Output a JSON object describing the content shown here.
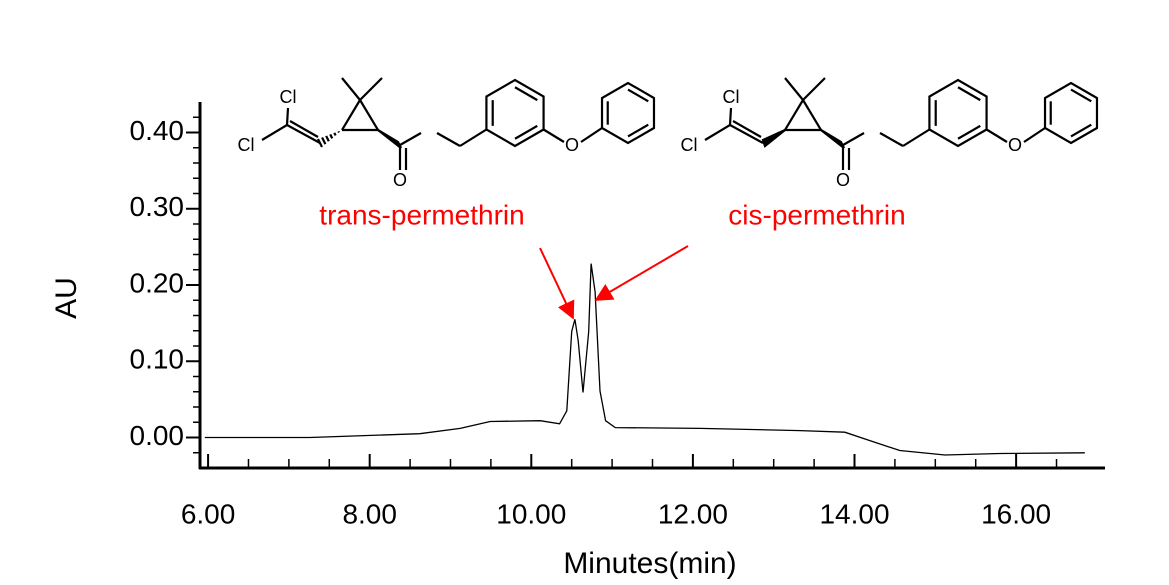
{
  "chart_data": {
    "type": "line",
    "x_label": "Minutes(min)",
    "y_label": "AU",
    "annotations": [
      "trans-permethrin",
      "cis-permethrin"
    ],
    "annotation_color": "#ff0000",
    "structure_labels": [
      [
        "Cl",
        "Cl",
        "O",
        "O"
      ],
      [
        "Cl",
        "Cl",
        "O",
        "O"
      ]
    ],
    "x": [
      5.96,
      7.26,
      8.62,
      9.12,
      9.49,
      10.11,
      10.35,
      10.44,
      10.5,
      10.54,
      10.58,
      10.64,
      10.71,
      10.74,
      10.79,
      10.85,
      10.92,
      11.04,
      12.09,
      13.33,
      13.88,
      14.19,
      14.56,
      15.12,
      15.8,
      16.85
    ],
    "values": [
      0.0,
      0.0,
      0.005,
      0.012,
      0.021,
      0.022,
      0.018,
      0.035,
      0.139,
      0.155,
      0.127,
      0.059,
      0.139,
      0.228,
      0.191,
      0.061,
      0.022,
      0.013,
      0.012,
      0.009,
      0.007,
      -0.004,
      -0.017,
      -0.023,
      -0.021,
      -0.02
    ],
    "color": "#000000",
    "xlim": [
      5.9,
      17.1
    ],
    "ylim": [
      -0.04,
      0.44
    ],
    "xticks": [
      {
        "value": 6,
        "label": "6.00"
      },
      {
        "value": 8,
        "label": "8.00"
      },
      {
        "value": 10,
        "label": "10.00"
      },
      {
        "value": 12,
        "label": "12.00"
      },
      {
        "value": 14,
        "label": "14.00"
      },
      {
        "value": 16,
        "label": "16.00"
      }
    ],
    "yticks": [
      {
        "value": 0,
        "label": "0.00"
      },
      {
        "value": 0.1,
        "label": "0.10"
      },
      {
        "value": 0.2,
        "label": "0.20"
      },
      {
        "value": 0.3,
        "label": "0.30"
      },
      {
        "value": 0.4,
        "label": "0.40"
      }
    ],
    "xticks_minor": [
      6.5,
      7,
      7.5,
      8.5,
      9,
      9.5,
      10.5,
      11,
      11.5,
      12.5,
      13,
      13.5,
      14.5,
      15,
      15.5,
      16.5
    ],
    "yticks_minor": [
      -0.02,
      0.02,
      0.04,
      0.06,
      0.08,
      0.12,
      0.14,
      0.16,
      0.18,
      0.22,
      0.24,
      0.26,
      0.28,
      0.32,
      0.34,
      0.36,
      0.38,
      0.42
    ]
  }
}
